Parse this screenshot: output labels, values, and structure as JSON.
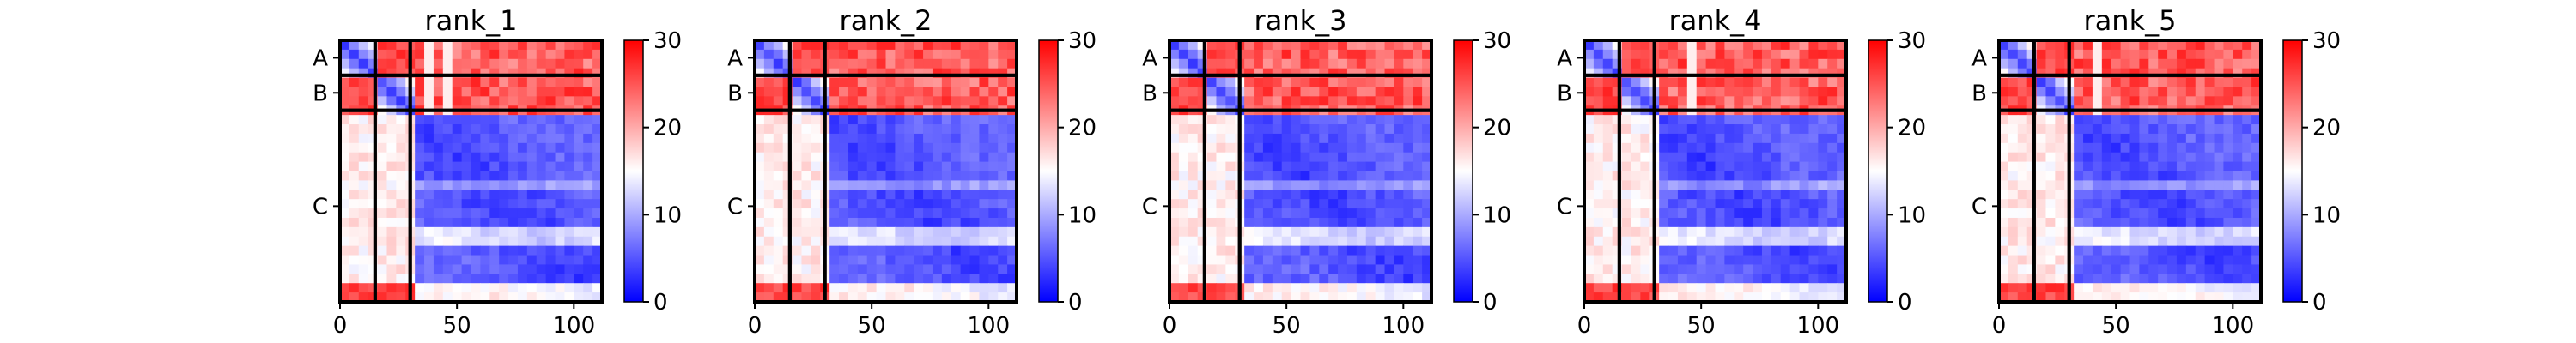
{
  "chart_data": [
    {
      "type": "heatmap",
      "title": "rank_1",
      "chains": [
        {
          "label": "A",
          "start": 0,
          "end": 15
        },
        {
          "label": "B",
          "start": 15,
          "end": 30
        },
        {
          "label": "C",
          "start": 30,
          "end": 112
        }
      ],
      "xticks": [
        0,
        50,
        100
      ],
      "xlim": [
        0,
        112
      ],
      "colorbar": {
        "min": 0,
        "max": 30,
        "ticks": [
          0,
          10,
          20,
          30
        ]
      },
      "colors": {
        "low": "#0000ff",
        "mid": "#ffffff",
        "high": "#ff0000"
      }
    },
    {
      "type": "heatmap",
      "title": "rank_2",
      "chains": [
        {
          "label": "A",
          "start": 0,
          "end": 15
        },
        {
          "label": "B",
          "start": 15,
          "end": 30
        },
        {
          "label": "C",
          "start": 30,
          "end": 112
        }
      ],
      "xticks": [
        0,
        50,
        100
      ],
      "xlim": [
        0,
        112
      ],
      "colorbar": {
        "min": 0,
        "max": 30,
        "ticks": [
          0,
          10,
          20,
          30
        ]
      },
      "colors": {
        "low": "#0000ff",
        "mid": "#ffffff",
        "high": "#ff0000"
      }
    },
    {
      "type": "heatmap",
      "title": "rank_3",
      "chains": [
        {
          "label": "A",
          "start": 0,
          "end": 15
        },
        {
          "label": "B",
          "start": 15,
          "end": 30
        },
        {
          "label": "C",
          "start": 30,
          "end": 112
        }
      ],
      "xticks": [
        0,
        50,
        100
      ],
      "xlim": [
        0,
        112
      ],
      "colorbar": {
        "min": 0,
        "max": 30,
        "ticks": [
          0,
          10,
          20,
          30
        ]
      },
      "colors": {
        "low": "#0000ff",
        "mid": "#ffffff",
        "high": "#ff0000"
      }
    },
    {
      "type": "heatmap",
      "title": "rank_4",
      "chains": [
        {
          "label": "A",
          "start": 0,
          "end": 15
        },
        {
          "label": "B",
          "start": 15,
          "end": 30
        },
        {
          "label": "C",
          "start": 30,
          "end": 112
        }
      ],
      "xticks": [
        0,
        50,
        100
      ],
      "xlim": [
        0,
        112
      ],
      "colorbar": {
        "min": 0,
        "max": 30,
        "ticks": [
          0,
          10,
          20,
          30
        ]
      },
      "colors": {
        "low": "#0000ff",
        "mid": "#ffffff",
        "high": "#ff0000"
      }
    },
    {
      "type": "heatmap",
      "title": "rank_5",
      "chains": [
        {
          "label": "A",
          "start": 0,
          "end": 15
        },
        {
          "label": "B",
          "start": 15,
          "end": 30
        },
        {
          "label": "C",
          "start": 30,
          "end": 112
        }
      ],
      "xticks": [
        0,
        50,
        100
      ],
      "xlim": [
        0,
        112
      ],
      "colorbar": {
        "min": 0,
        "max": 30,
        "ticks": [
          0,
          10,
          20,
          30
        ]
      },
      "colors": {
        "low": "#0000ff",
        "mid": "#ffffff",
        "high": "#ff0000"
      }
    }
  ]
}
